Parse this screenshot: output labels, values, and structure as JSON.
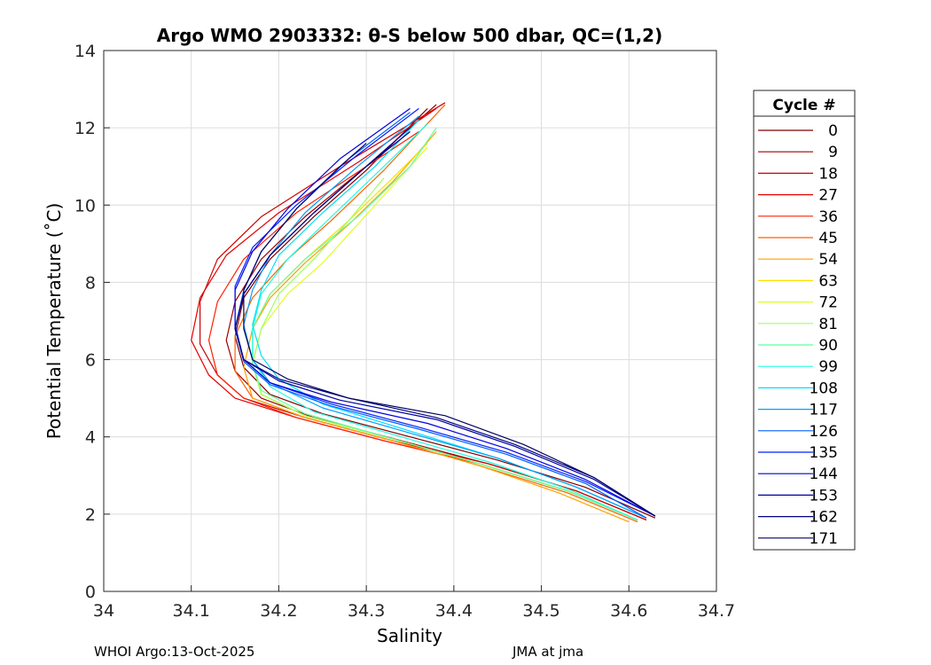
{
  "chart_data": {
    "type": "line",
    "title": "Argo WMO 2903332: θ-S below 500 dbar,  QC=(1,2)",
    "xlabel": "Salinity",
    "ylabel": "Potential Temperature (˚C)",
    "xlim": [
      34,
      34.7
    ],
    "ylim": [
      0,
      14
    ],
    "xticks": [
      "34",
      "34.1",
      "34.2",
      "34.3",
      "34.4",
      "34.5",
      "34.6",
      "34.7"
    ],
    "xtick_values": [
      34,
      34.1,
      34.2,
      34.3,
      34.4,
      34.5,
      34.6,
      34.7
    ],
    "yticks": [
      "0",
      "2",
      "4",
      "6",
      "8",
      "10",
      "12",
      "14"
    ],
    "ytick_values": [
      0,
      2,
      4,
      6,
      8,
      10,
      12,
      14
    ],
    "grid": true,
    "legend": {
      "title": "Cycle #",
      "placement": "outside-right",
      "entries": [
        "0",
        "9",
        "18",
        "27",
        "36",
        "45",
        "54",
        "63",
        "72",
        "81",
        "90",
        "99",
        "108",
        "117",
        "126",
        "135",
        "144",
        "153",
        "162",
        "171"
      ],
      "colors": [
        "#7f0000",
        "#a00000",
        "#cc0000",
        "#e60000",
        "#ff2000",
        "#ff6000",
        "#ff9f00",
        "#ffdf00",
        "#dfff20",
        "#9fff60",
        "#60ff9f",
        "#20ffdf",
        "#00dfff",
        "#009fff",
        "#0060ff",
        "#0020ff",
        "#0000df",
        "#00009f",
        "#000080",
        "#000060"
      ]
    },
    "series": [
      {
        "name": "0",
        "color": "#7f0000",
        "x": [
          34.63,
          34.55,
          34.45,
          34.35,
          34.25,
          34.19,
          34.16,
          34.15,
          34.16,
          34.19,
          34.24,
          34.3,
          34.37
        ],
        "y": [
          1.9,
          2.7,
          3.4,
          4.0,
          4.6,
          5.1,
          5.8,
          6.6,
          7.6,
          8.6,
          9.7,
          10.9,
          12.5
        ]
      },
      {
        "name": "9",
        "color": "#a00000",
        "x": [
          34.62,
          34.54,
          34.44,
          34.34,
          34.24,
          34.18,
          34.15,
          34.14,
          34.15,
          34.18,
          34.23,
          34.3,
          34.38
        ],
        "y": [
          1.85,
          2.6,
          3.3,
          3.9,
          4.5,
          5.0,
          5.7,
          6.5,
          7.5,
          8.6,
          9.7,
          11.0,
          12.6
        ]
      },
      {
        "name": "18",
        "color": "#cc0000",
        "x": [
          34.62,
          34.54,
          34.44,
          34.33,
          34.23,
          34.16,
          34.13,
          34.11,
          34.11,
          34.13,
          34.18,
          34.27,
          34.39
        ],
        "y": [
          1.85,
          2.6,
          3.3,
          3.9,
          4.5,
          5.0,
          5.6,
          6.4,
          7.5,
          8.6,
          9.7,
          11.0,
          12.65
        ]
      },
      {
        "name": "27",
        "color": "#e60000",
        "x": [
          34.61,
          34.53,
          34.43,
          34.32,
          34.22,
          34.15,
          34.12,
          34.1,
          34.11,
          34.14,
          34.2,
          34.29,
          34.38
        ],
        "y": [
          1.85,
          2.6,
          3.3,
          3.9,
          4.5,
          5.0,
          5.6,
          6.5,
          7.6,
          8.7,
          9.8,
          11.1,
          12.5
        ]
      },
      {
        "name": "36",
        "color": "#ff2000",
        "x": [
          34.61,
          34.53,
          34.43,
          34.32,
          34.22,
          34.16,
          34.13,
          34.12,
          34.13,
          34.16,
          34.22,
          34.3,
          34.36
        ],
        "y": [
          1.85,
          2.6,
          3.3,
          3.9,
          4.5,
          5.0,
          5.6,
          6.5,
          7.5,
          8.6,
          9.8,
          11.0,
          11.9
        ]
      },
      {
        "name": "45",
        "color": "#ff6000",
        "x": [
          34.61,
          34.53,
          34.43,
          34.33,
          34.23,
          34.17,
          34.15,
          34.15,
          34.17,
          34.21,
          34.26,
          34.32,
          34.39
        ],
        "y": [
          1.8,
          2.55,
          3.25,
          3.9,
          4.5,
          5.0,
          5.7,
          6.6,
          7.6,
          8.6,
          9.6,
          10.9,
          12.6
        ]
      },
      {
        "name": "54",
        "color": "#ff9f00",
        "x": [
          34.6,
          34.52,
          34.43,
          34.33,
          34.23,
          34.17,
          34.16,
          34.17,
          34.19,
          34.23,
          34.28,
          34.33,
          34.38
        ],
        "y": [
          1.8,
          2.55,
          3.25,
          3.9,
          4.5,
          5.0,
          5.8,
          6.8,
          7.6,
          8.5,
          9.5,
          10.6,
          11.9
        ]
      },
      {
        "name": "63",
        "color": "#ffdf00",
        "x": [
          34.61,
          34.53,
          34.43,
          34.33,
          34.23,
          34.18,
          34.17,
          34.17,
          34.19,
          34.23,
          34.28,
          34.33,
          34.37
        ],
        "y": [
          1.85,
          2.6,
          3.3,
          3.95,
          4.55,
          5.1,
          5.9,
          6.8,
          7.7,
          8.6,
          9.6,
          10.7,
          11.6
        ]
      },
      {
        "name": "72",
        "color": "#dfff20",
        "x": [
          34.61,
          34.53,
          34.43,
          34.33,
          34.23,
          34.18,
          34.17,
          34.18,
          34.21,
          34.25,
          34.29,
          34.33,
          34.37
        ],
        "y": [
          1.85,
          2.6,
          3.3,
          3.95,
          4.55,
          5.1,
          5.9,
          6.8,
          7.7,
          8.5,
          9.5,
          10.5,
          11.5
        ]
      },
      {
        "name": "81",
        "color": "#9fff60",
        "x": [
          34.61,
          34.53,
          34.43,
          34.33,
          34.23,
          34.18,
          34.17,
          34.18,
          34.2,
          34.24,
          34.28,
          34.32
        ],
        "y": [
          1.85,
          2.6,
          3.3,
          3.95,
          4.55,
          5.1,
          5.9,
          6.8,
          7.7,
          8.6,
          9.6,
          10.7
        ]
      },
      {
        "name": "90",
        "color": "#60ff9f",
        "x": [
          34.61,
          34.53,
          34.43,
          34.33,
          34.23,
          34.18,
          34.17,
          34.17,
          34.19,
          34.23,
          34.29,
          34.35,
          34.38
        ],
        "y": [
          1.85,
          2.6,
          3.3,
          3.95,
          4.6,
          5.2,
          5.9,
          6.8,
          7.7,
          8.6,
          9.7,
          11.0,
          12.0
        ]
      },
      {
        "name": "99",
        "color": "#20ffdf",
        "x": [
          34.61,
          34.53,
          34.44,
          34.34,
          34.24,
          34.19,
          34.17,
          34.17,
          34.18,
          34.21,
          34.26,
          34.32,
          34.37
        ],
        "y": [
          1.85,
          2.65,
          3.35,
          4.0,
          4.65,
          5.3,
          6.0,
          6.8,
          7.7,
          8.6,
          9.7,
          11.0,
          12.1
        ]
      },
      {
        "name": "108",
        "color": "#00dfff",
        "x": [
          34.62,
          34.54,
          34.45,
          34.35,
          34.25,
          34.2,
          34.18,
          34.17,
          34.18,
          34.2,
          34.25,
          34.31,
          34.36
        ],
        "y": [
          1.9,
          2.7,
          3.45,
          4.15,
          4.85,
          5.5,
          6.1,
          6.9,
          7.8,
          8.7,
          9.8,
          11.0,
          12.2
        ]
      },
      {
        "name": "117",
        "color": "#009fff",
        "x": [
          34.62,
          34.54,
          34.45,
          34.35,
          34.25,
          34.19,
          34.17,
          34.16,
          34.17,
          34.19,
          34.23,
          34.29,
          34.36
        ],
        "y": [
          1.9,
          2.7,
          3.45,
          4.1,
          4.75,
          5.4,
          6.0,
          6.9,
          7.8,
          8.7,
          9.8,
          11.0,
          12.3
        ]
      },
      {
        "name": "126",
        "color": "#0060ff",
        "x": [
          34.62,
          34.55,
          34.46,
          34.36,
          34.26,
          34.19,
          34.16,
          34.15,
          34.16,
          34.18,
          34.22,
          34.28,
          34.35
        ],
        "y": [
          1.9,
          2.8,
          3.55,
          4.2,
          4.8,
          5.35,
          5.95,
          6.8,
          7.8,
          8.8,
          9.9,
          11.2,
          12.4
        ]
      },
      {
        "name": "135",
        "color": "#0020ff",
        "x": [
          34.63,
          34.55,
          34.46,
          34.36,
          34.26,
          34.19,
          34.16,
          34.15,
          34.15,
          34.17,
          34.22,
          34.29,
          34.36
        ],
        "y": [
          1.95,
          2.85,
          3.6,
          4.25,
          4.85,
          5.4,
          6.0,
          6.9,
          7.9,
          8.9,
          10.0,
          11.3,
          12.5
        ]
      },
      {
        "name": "144",
        "color": "#0000df",
        "x": [
          34.63,
          34.55,
          34.46,
          34.37,
          34.26,
          34.19,
          34.16,
          34.15,
          34.15,
          34.17,
          34.21,
          34.27,
          34.35
        ],
        "y": [
          1.95,
          2.9,
          3.7,
          4.35,
          4.9,
          5.4,
          6.0,
          6.8,
          7.8,
          8.8,
          9.9,
          11.2,
          12.5
        ]
      },
      {
        "name": "153",
        "color": "#00009f",
        "x": [
          34.63,
          34.56,
          34.47,
          34.38,
          34.27,
          34.2,
          34.16,
          34.15,
          34.16,
          34.19,
          34.24,
          34.3,
          34.35
        ],
        "y": [
          1.95,
          2.9,
          3.75,
          4.45,
          4.95,
          5.45,
          6.0,
          6.8,
          7.7,
          8.7,
          9.8,
          11.0,
          12.0
        ]
      },
      {
        "name": "162",
        "color": "#000080",
        "x": [
          34.63,
          34.56,
          34.47,
          34.38,
          34.28,
          34.2,
          34.16,
          34.15,
          34.16,
          34.19,
          34.24,
          34.3,
          34.35
        ],
        "y": [
          1.95,
          2.95,
          3.8,
          4.5,
          5.0,
          5.5,
          6.0,
          6.8,
          7.7,
          8.7,
          9.8,
          11.0,
          11.9
        ]
      },
      {
        "name": "171",
        "color": "#000060",
        "x": [
          34.63,
          34.56,
          34.48,
          34.39,
          34.28,
          34.21,
          34.17,
          34.16,
          34.16,
          34.18,
          34.22,
          34.27,
          34.3
        ],
        "y": [
          1.95,
          2.95,
          3.8,
          4.55,
          5.0,
          5.5,
          6.0,
          6.8,
          7.8,
          8.8,
          9.9,
          11.0,
          11.6
        ]
      }
    ]
  },
  "footer": {
    "left": "WHOI Argo:13-Oct-2025",
    "right": "JMA at jma"
  }
}
